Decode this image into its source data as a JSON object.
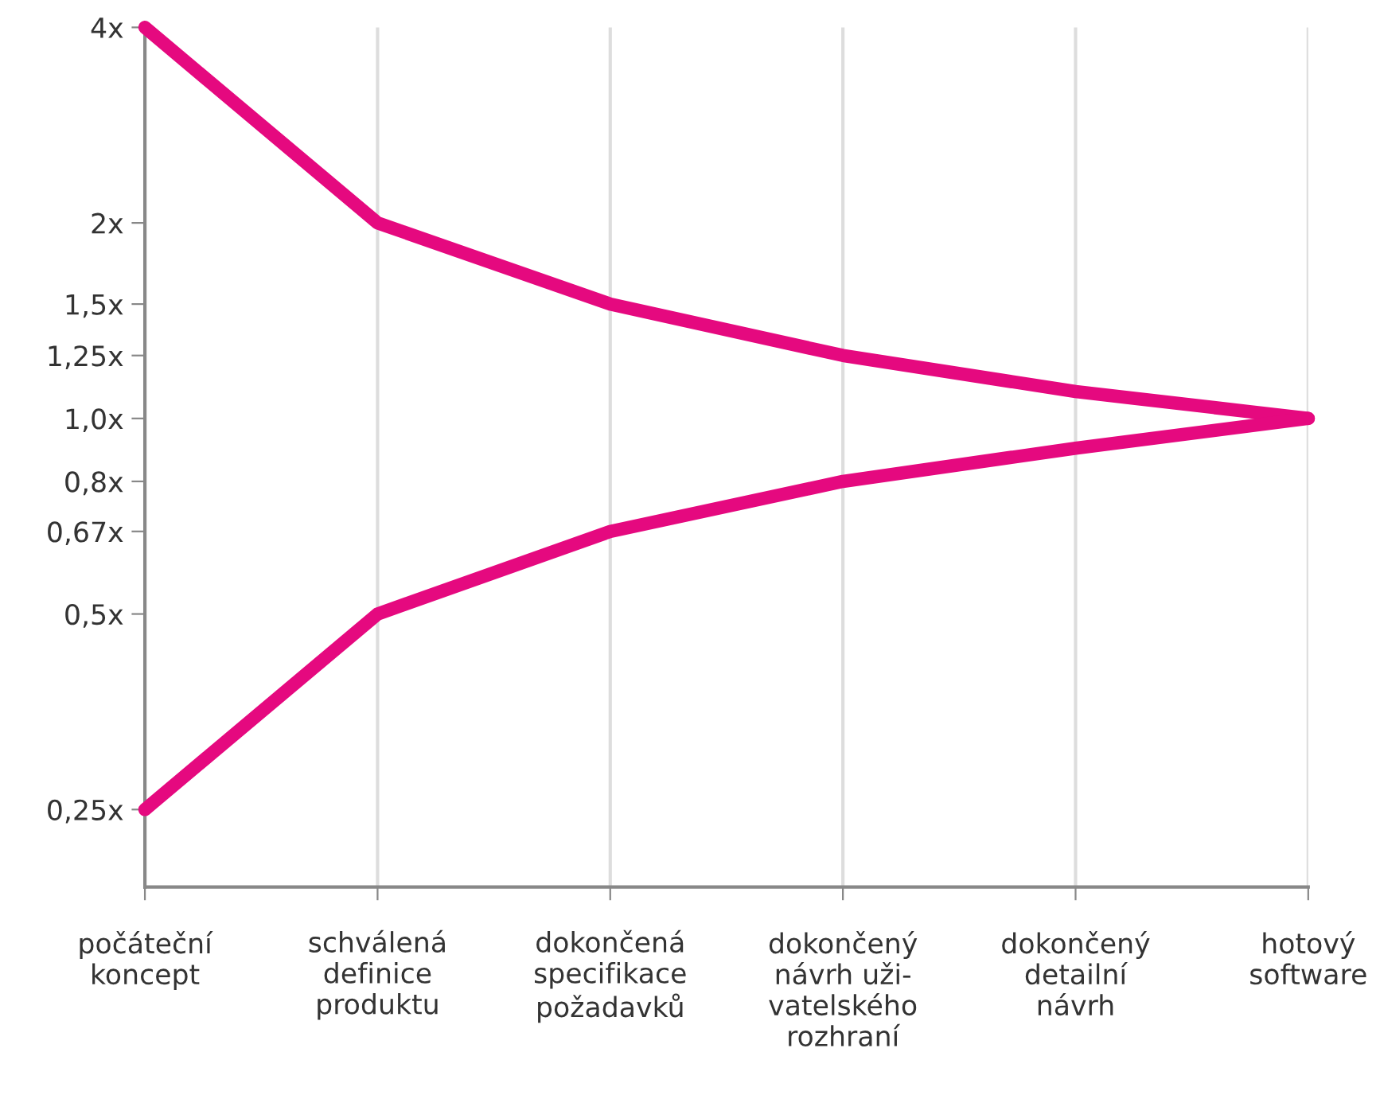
{
  "chart_data": {
    "type": "line",
    "categories": [
      "počáteční\nkoncept",
      "schválená\ndefinice\nproduktu",
      "dokončená\nspecifikace\npožadavků",
      "dokončený\nnávrh uži-\nvatelského\nrozhraní",
      "dokončený\ndetailní\nnávrh",
      "hotový\nsoftware"
    ],
    "series": [
      {
        "color": "#e5097f",
        "values": [
          4,
          2,
          1.5,
          1.25,
          1.1,
          1.0
        ]
      },
      {
        "color": "#e5097f",
        "values": [
          0.25,
          0.5,
          0.67,
          0.8,
          0.9,
          1.0
        ]
      }
    ],
    "log": "y",
    "ylim": [
      0.19,
      4
    ],
    "yticks": [
      {
        "value": 0.25,
        "label": "0,25x"
      },
      {
        "value": 0.5,
        "label": "0,5x"
      },
      {
        "value": 0.67,
        "label": "0,67x"
      },
      {
        "value": 0.8,
        "label": "0,8x"
      },
      {
        "value": 1.0,
        "label": "1,0x"
      },
      {
        "value": 1.25,
        "label": "1,25x"
      },
      {
        "value": 1.5,
        "label": "1,5x"
      },
      {
        "value": 2,
        "label": "2x"
      },
      {
        "value": 4,
        "label": "4x"
      }
    ],
    "grid": "x",
    "marker": "none",
    "line_style": "solid"
  }
}
